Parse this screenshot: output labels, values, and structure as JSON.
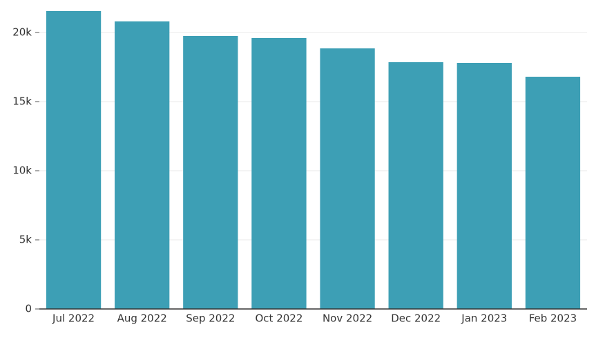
{
  "chart_data": {
    "type": "bar",
    "categories": [
      "Jul 2022",
      "Aug 2022",
      "Sep 2022",
      "Oct 2022",
      "Nov 2022",
      "Dec 2022",
      "Jan 2023",
      "Feb 2023"
    ],
    "values": [
      21550,
      20800,
      19750,
      19600,
      18850,
      17850,
      17800,
      16800
    ],
    "color": "#3d9fb5",
    "ylim": [
      0,
      22000
    ],
    "yticks": [
      0,
      {
        "value": 5000,
        "label": "5k"
      },
      {
        "value": 10000,
        "label": "10k"
      },
      {
        "value": 15000,
        "label": "15k"
      },
      {
        "value": 20000,
        "label": "20k"
      }
    ],
    "grid": true
  }
}
